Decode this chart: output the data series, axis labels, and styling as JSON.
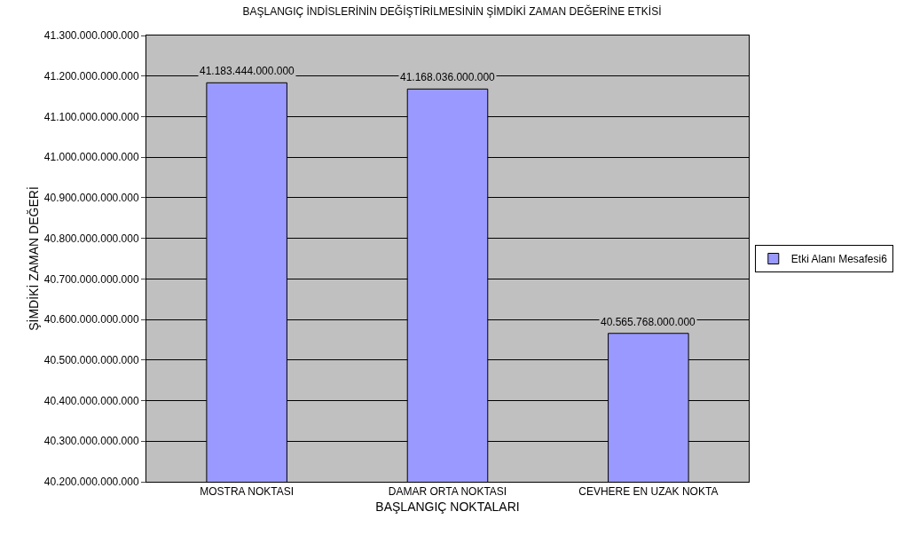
{
  "chart_data": {
    "type": "bar",
    "title": "BAŞLANGIÇ İNDİSLERİNİN DEĞİŞTİRİLMESİNİN ŞİMDİKİ ZAMAN DEĞERİNE ETKİSİ",
    "xlabel": "BAŞLANGIÇ NOKTALARI",
    "ylabel": "ŞİMDİKİ ZAMAN DEĞERİ",
    "categories": [
      "MOSTRA NOKTASI",
      "DAMAR ORTA NOKTASI",
      "CEVHERE EN UZAK NOKTA"
    ],
    "series": [
      {
        "name": "Etki Alanı Mesafesi6",
        "color": "#9999ff",
        "values": [
          41183444000000,
          41168036000000,
          40565768000000
        ],
        "value_labels": [
          "41.183.444.000.000",
          "41.168.036.000.000",
          "40.565.768.000.000"
        ]
      }
    ],
    "ylim": [
      40200000000000,
      41300000000000
    ],
    "yticks": [
      {
        "value": 40200000000000,
        "label": "40.200.000.000.000"
      },
      {
        "value": 40300000000000,
        "label": "40.300.000.000.000"
      },
      {
        "value": 40400000000000,
        "label": "40.400.000.000.000"
      },
      {
        "value": 40500000000000,
        "label": "40.500.000.000.000"
      },
      {
        "value": 40600000000000,
        "label": "40.600.000.000.000"
      },
      {
        "value": 40700000000000,
        "label": "40.700.000.000.000"
      },
      {
        "value": 40800000000000,
        "label": "40.800.000.000.000"
      },
      {
        "value": 40900000000000,
        "label": "40.900.000.000.000"
      },
      {
        "value": 41000000000000,
        "label": "41.000.000.000.000"
      },
      {
        "value": 41100000000000,
        "label": "41.100.000.000.000"
      },
      {
        "value": 41200000000000,
        "label": "41.200.000.000.000"
      },
      {
        "value": 41300000000000,
        "label": "41.300.000.000.000"
      }
    ],
    "grid": "y",
    "legend": "right"
  }
}
